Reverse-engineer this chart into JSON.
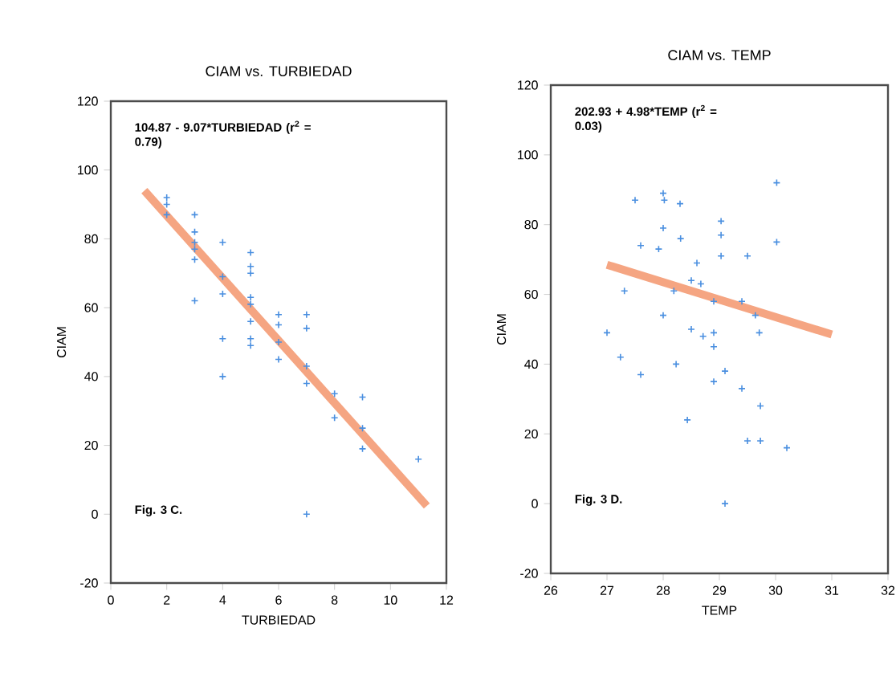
{
  "chart_data": [
    {
      "type": "scatter",
      "title": "CIAM vs. TURBIEDAD",
      "xlabel": "TURBIEDAD",
      "ylabel": "CIAM",
      "annotations": [
        "104.87 - 9.07*TURBIEDAD (r$^{2}$ = 0.79)",
        "Fig. 3 C."
      ],
      "xlim": [
        0,
        12
      ],
      "ylim": [
        -20,
        120
      ],
      "xticks": [
        0,
        2,
        4,
        6,
        8,
        10,
        12
      ],
      "yticks": [
        -20,
        0,
        20,
        40,
        60,
        80,
        100,
        120
      ],
      "series": [
        {
          "marker": "cross",
          "color": "#4a8fe0",
          "x": [
            2,
            2,
            2,
            3,
            3,
            3,
            3,
            3,
            3,
            4,
            4,
            4,
            4,
            4,
            5,
            5,
            5,
            5,
            5,
            5,
            5,
            5,
            6,
            6,
            6,
            6,
            7,
            7,
            7,
            7,
            7,
            8,
            8,
            9,
            9,
            9,
            11
          ],
          "values": [
            92,
            90,
            87,
            87,
            82,
            79,
            77,
            74,
            62,
            79,
            69,
            64,
            51,
            40,
            76,
            72,
            70,
            63,
            61,
            56,
            51,
            49,
            58,
            55,
            50,
            45,
            58,
            54,
            43,
            38,
            0,
            35,
            28,
            34,
            25,
            19,
            16
          ]
        },
        {
          "type": "line",
          "color": "#f5a582",
          "x": [
            1.2,
            11.3
          ],
          "values": [
            94,
            2.4
          ]
        }
      ]
    },
    {
      "type": "scatter",
      "title": "CIAM vs. TEMP",
      "xlabel": "TEMP",
      "ylabel": "CIAM",
      "annotations": [
        "202.93 + 4.98*TEMP (r$^{2}$ = 0.03)",
        "Fig. 3 D."
      ],
      "xlim": [
        26,
        32
      ],
      "ylim": [
        -20,
        120
      ],
      "xticks": [
        26,
        27,
        28,
        29,
        30,
        31,
        32
      ],
      "yticks": [
        -20,
        0,
        20,
        40,
        60,
        80,
        100,
        120
      ],
      "series": [
        {
          "marker": "cross",
          "color": "#4a8fe0",
          "x": [
            27.0,
            27.24,
            27.31,
            27.5,
            27.6,
            27.6,
            27.92,
            28.0,
            28.02,
            28.0,
            28.0,
            28.19,
            28.23,
            28.3,
            28.31,
            28.43,
            28.6,
            28.5,
            28.5,
            28.67,
            28.71,
            28.9,
            28.9,
            28.9,
            28.9,
            29.03,
            29.03,
            29.03,
            29.1,
            29.1,
            29.4,
            29.4,
            29.5,
            29.5,
            29.64,
            29.71,
            29.73,
            29.73,
            30.02,
            30.02,
            30.2
          ],
          "values": [
            49,
            42,
            61,
            87,
            37,
            74,
            73,
            89,
            87,
            79,
            54,
            61,
            40,
            86,
            76,
            24,
            69,
            64,
            50,
            63,
            48,
            58,
            49,
            45,
            35,
            81,
            77,
            71,
            38,
            0,
            58,
            33,
            71,
            18,
            54,
            49,
            28,
            18,
            92,
            75,
            16
          ]
        },
        {
          "type": "line",
          "color": "#f5a582",
          "x": [
            27,
            31
          ],
          "values": [
            68.5,
            48.5
          ]
        }
      ]
    }
  ]
}
